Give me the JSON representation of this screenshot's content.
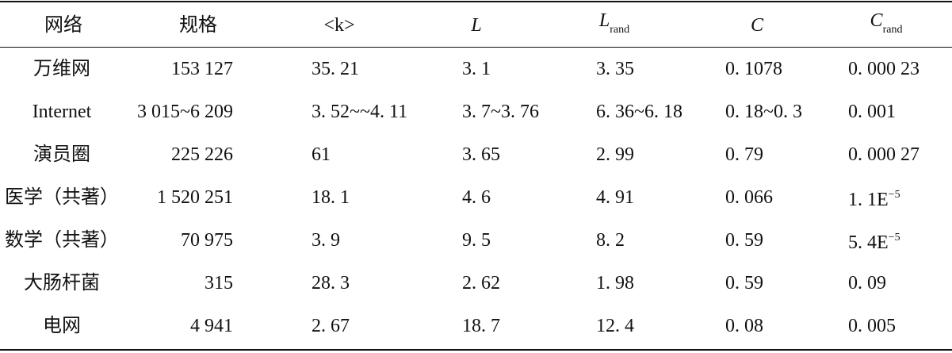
{
  "table": {
    "header": [
      {
        "text": "网络"
      },
      {
        "text": "规格"
      },
      {
        "text": "<k>"
      },
      {
        "text": "L"
      },
      {
        "text": "L",
        "sub": "rand"
      },
      {
        "text": "C"
      },
      {
        "text": "C",
        "sub": "rand"
      }
    ],
    "rows": [
      [
        "万维网",
        "153 127",
        "35. 21",
        "3. 1",
        "3. 35",
        "0. 1078",
        "0. 000 23"
      ],
      [
        "Internet",
        "3 015~6 209",
        "3. 52~~4. 11",
        "3. 7~3. 76",
        "6. 36~6. 18",
        "0. 18~0. 3",
        "0. 001"
      ],
      [
        "演员圈",
        "225 226",
        "61",
        "3. 65",
        "2. 99",
        "0. 79",
        "0. 000 27"
      ],
      [
        "医学（共著）",
        "1 520 251",
        "18. 1",
        "4. 6",
        "4. 91",
        "0. 066",
        {
          "text": "1. 1E",
          "sup": "−5"
        }
      ],
      [
        "数学（共著）",
        "70 975",
        "3. 9",
        "9. 5",
        "8. 2",
        "0. 59",
        {
          "text": "5. 4E",
          "sup": "−5"
        }
      ],
      [
        "大肠杆菌",
        "315",
        "28. 3",
        "2. 62",
        "1. 98",
        "0. 59",
        "0. 09"
      ],
      [
        "电网",
        "4 941",
        "2. 67",
        "18. 7",
        "12. 4",
        "0. 08",
        "0. 005"
      ]
    ]
  }
}
